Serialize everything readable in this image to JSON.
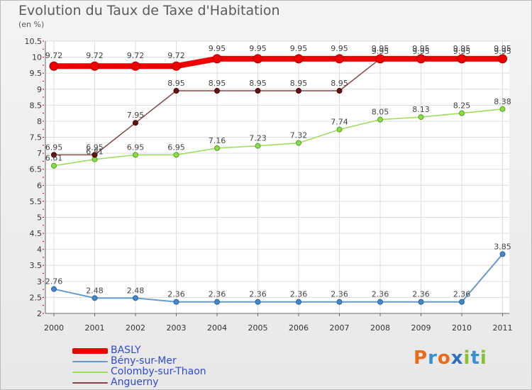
{
  "header": {
    "title": "Evolution du Taux de Taxe d'Habitation",
    "subtitle": "(en %)"
  },
  "logo": {
    "text": "Proxiti",
    "letters": [
      "P",
      "r",
      "o",
      "x",
      "i",
      "t",
      "i"
    ]
  },
  "colors": {
    "BASLY": "#ee0000",
    "Bény-sur-Mer": "#6699cc",
    "Colomby-sur-Thaon": "#99dd55",
    "Anguerny": "#884444"
  },
  "chart_data": {
    "type": "line",
    "x": [
      "2000",
      "2001",
      "2002",
      "2003",
      "2004",
      "2005",
      "2006",
      "2007",
      "2008",
      "2009",
      "2010",
      "2011"
    ],
    "yticks": [
      "2",
      "2.5",
      "3",
      "3.5",
      "4",
      "4.5",
      "5",
      "5.5",
      "6",
      "6.5",
      "7",
      "7.5",
      "8",
      "8.5",
      "9",
      "9.5",
      "10",
      "10.5"
    ],
    "ylim": [
      2,
      10.5
    ],
    "grid": true,
    "legend_position": "bottom-left",
    "series": [
      {
        "name": "BASLY",
        "values": [
          9.72,
          9.72,
          9.72,
          9.72,
          9.95,
          9.95,
          9.95,
          9.95,
          9.95,
          9.95,
          9.95,
          9.95
        ],
        "labels": [
          "9.72",
          "9.72",
          "9.72",
          "9.72",
          "9.95",
          "9.95",
          "9.95",
          "9.95",
          "9.95",
          "9.95",
          "9.95",
          "9.95"
        ]
      },
      {
        "name": "Bény-sur-Mer",
        "values": [
          2.76,
          2.48,
          2.48,
          2.36,
          2.36,
          2.36,
          2.36,
          2.36,
          2.36,
          2.36,
          2.36,
          3.85
        ],
        "labels": [
          "2.76",
          "2.48",
          "2.48",
          "2.36",
          "2.36",
          "2.36",
          "2.36",
          "2.36",
          "2.36",
          "2.36",
          "2.36",
          "3.85"
        ]
      },
      {
        "name": "Colomby-sur-Thaon",
        "values": [
          6.61,
          6.81,
          6.95,
          6.95,
          7.16,
          7.23,
          7.32,
          7.74,
          8.05,
          8.13,
          8.25,
          8.38
        ],
        "labels": [
          "6.61",
          "6.81",
          "6.95",
          "6.95",
          "7.16",
          "7.23",
          "7.32",
          "7.74",
          "8.05",
          "8.13",
          "8.25",
          "8.38"
        ]
      },
      {
        "name": "Anguerny",
        "values": [
          6.95,
          6.95,
          7.95,
          8.95,
          8.95,
          8.95,
          8.95,
          8.95,
          9.95,
          9.95,
          9.95,
          9.95
        ],
        "labels": [
          "6.95",
          "6.95",
          "7.95",
          "8.95",
          "8.95",
          "8.95",
          "8.95",
          "8.95",
          "9.95",
          "9.95",
          "9.95",
          "9.95"
        ]
      }
    ]
  }
}
